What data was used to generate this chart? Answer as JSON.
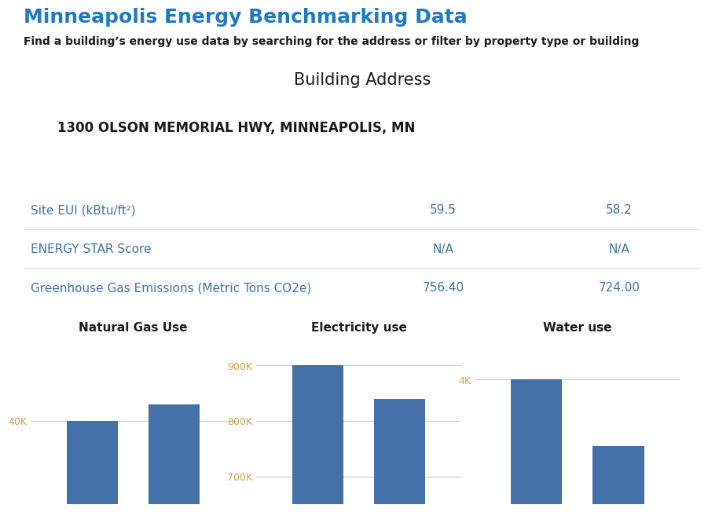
{
  "title": "Minneapolis Energy Benchmarking Data",
  "subtitle": "Find a building’s energy use data by searching for the address or filter by property type or building",
  "title_color": "#1F7AC3",
  "subtitle_color": "#1a1a1a",
  "building_address_label": "Building Address",
  "building_address": "1300 OLSON MEMORIAL HWY, MINNEAPOLIS, MN",
  "banner_color": "#4472A8",
  "bg_color": "#ffffff",
  "metrics": [
    {
      "label": "Site EUI (kBtu/ft²)",
      "val1": "59.5",
      "val2": "58.2",
      "color": "#4472A8"
    },
    {
      "label": "ENERGY STAR Score",
      "val1": "N/A",
      "val2": "N/A",
      "color": "#4472A8"
    },
    {
      "label": "Greenhouse Gas Emissions (Metric Tons CO2e)",
      "val1": "756.40",
      "val2": "724.00",
      "color": "#4472A8"
    }
  ],
  "bar_sections": [
    {
      "title": "Natural Gas Use",
      "ytick_labels": [
        "40K"
      ],
      "ytick_values": [
        40
      ],
      "ytick_color": "#C8A44A",
      "bar_values": [
        40,
        42
      ],
      "bar_color": "#4472A8",
      "ymin": 30,
      "ymax": 50
    },
    {
      "title": "Electricity use",
      "ytick_labels": [
        "700K",
        "800K",
        "900K"
      ],
      "ytick_values": [
        700,
        800,
        900
      ],
      "ytick_color": "#C8A44A",
      "bar_values": [
        900,
        840
      ],
      "bar_color": "#4472A8",
      "ymin": 650,
      "ymax": 950
    },
    {
      "title": "Water use",
      "ytick_labels": [
        "4K"
      ],
      "ytick_values": [
        4
      ],
      "ytick_color": "#C8A44A",
      "bar_values": [
        4.0,
        3.2
      ],
      "bar_color": "#4472A8",
      "ymin": 2.5,
      "ymax": 4.5
    }
  ]
}
